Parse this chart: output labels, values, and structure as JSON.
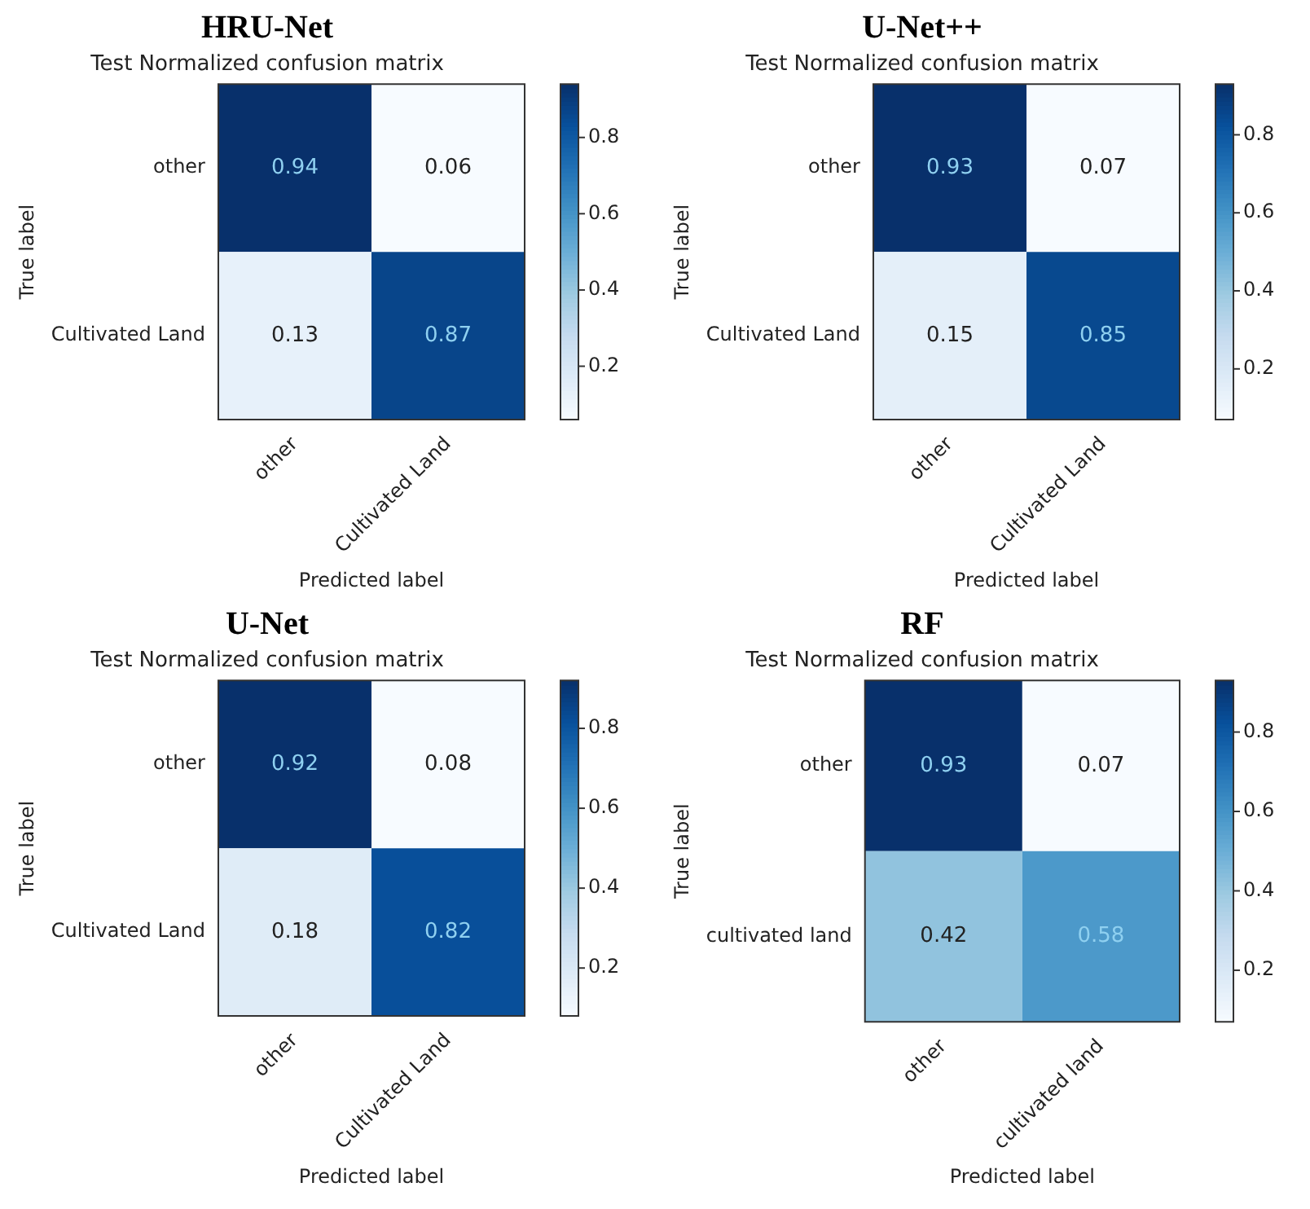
{
  "chart_data": [
    {
      "type": "heatmap",
      "title": "HRU-Net",
      "subtitle": "Test Normalized confusion matrix",
      "xlabel": "Predicted label",
      "ylabel": "True label",
      "categories": [
        "other",
        "Cultivated Land"
      ],
      "y_categories": [
        "other",
        "Cultivated Land"
      ],
      "cells": [
        [
          0.94,
          0.06
        ],
        [
          0.13,
          0.87
        ]
      ],
      "data_labels": true,
      "clim": [
        0.06,
        0.94
      ],
      "cticks": [
        0.2,
        0.4,
        0.6,
        0.8
      ]
    },
    {
      "type": "heatmap",
      "title": "U-Net++",
      "subtitle": "Test Normalized confusion matrix",
      "xlabel": "Predicted label",
      "ylabel": "True label",
      "categories": [
        "other",
        "Cultivated Land"
      ],
      "y_categories": [
        "other",
        "Cultivated Land"
      ],
      "cells": [
        [
          0.93,
          0.07
        ],
        [
          0.15,
          0.85
        ]
      ],
      "data_labels": true,
      "clim": [
        0.07,
        0.93
      ],
      "cticks": [
        0.2,
        0.4,
        0.6,
        0.8
      ]
    },
    {
      "type": "heatmap",
      "title": "U-Net",
      "subtitle": "Test Normalized confusion matrix",
      "xlabel": "Predicted label",
      "ylabel": "True label",
      "categories": [
        "other",
        "Cultivated Land"
      ],
      "y_categories": [
        "other",
        "Cultivated Land"
      ],
      "cells": [
        [
          0.92,
          0.08
        ],
        [
          0.18,
          0.82
        ]
      ],
      "data_labels": true,
      "clim": [
        0.08,
        0.92
      ],
      "cticks": [
        0.2,
        0.4,
        0.6,
        0.8
      ]
    },
    {
      "type": "heatmap",
      "title": "RF",
      "subtitle": "Test Normalized confusion matrix",
      "xlabel": "Predicted label",
      "ylabel": "True label",
      "categories": [
        "other",
        "cultivated land"
      ],
      "y_categories": [
        "other",
        "cultivated land"
      ],
      "cells": [
        [
          0.93,
          0.07
        ],
        [
          0.42,
          0.58
        ]
      ],
      "data_labels": true,
      "clim": [
        0.07,
        0.93
      ],
      "cticks": [
        0.2,
        0.4,
        0.6,
        0.8
      ]
    }
  ]
}
